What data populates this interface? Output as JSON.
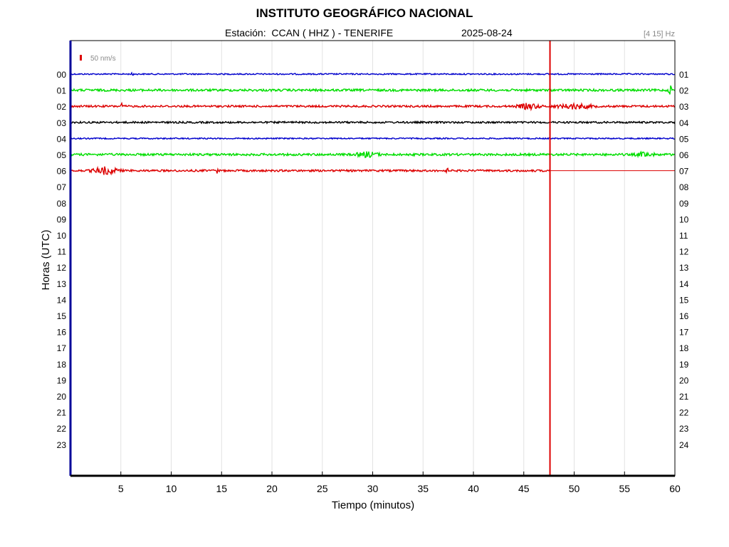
{
  "header": {
    "title": "INSTITUTO GEOGRÁFICO NACIONAL",
    "station": "Estación:  CCAN ( HHZ ) - TENERIFE",
    "date": "2025-08-24",
    "filter": "[4 15] Hz"
  },
  "scale_label": "50 nm/s",
  "chart_data": {
    "type": "line",
    "title": "INSTITUTO GEOGRÁFICO NACIONAL",
    "xlabel": "Tiempo (minutos)",
    "ylabel": "Horas (UTC)",
    "xlim": [
      0,
      60
    ],
    "x_ticks": [
      "5",
      "10",
      "15",
      "20",
      "25",
      "30",
      "35",
      "40",
      "45",
      "50",
      "55",
      "60"
    ],
    "left_hour_labels": [
      "00",
      "01",
      "02",
      "03",
      "04",
      "05",
      "06",
      "07",
      "08",
      "09",
      "10",
      "11",
      "12",
      "13",
      "14",
      "15",
      "16",
      "17",
      "18",
      "19",
      "20",
      "21",
      "22",
      "23"
    ],
    "right_hour_labels": [
      "01",
      "02",
      "03",
      "04",
      "05",
      "06",
      "07",
      "08",
      "09",
      "10",
      "11",
      "12",
      "13",
      "14",
      "15",
      "16",
      "17",
      "18",
      "19",
      "20",
      "21",
      "22",
      "23",
      "24"
    ],
    "grid": true,
    "current_time_minute": 47.6,
    "colors": {
      "blue": "#0000cc",
      "green": "#00dd00",
      "red": "#dd0000",
      "black": "#000000",
      "cursor": "#dd0000"
    },
    "traces": [
      {
        "hour": 0,
        "color": "#0000cc",
        "end_minute": 60,
        "noise": 0.9,
        "events": [
          {
            "minute": 6.2,
            "amp": 5,
            "width": 0.15
          }
        ]
      },
      {
        "hour": 1,
        "color": "#00dd00",
        "end_minute": 60,
        "noise": 1.6,
        "events": [
          {
            "minute": 59.6,
            "amp": 7,
            "width": 0.3
          }
        ]
      },
      {
        "hour": 2,
        "color": "#dd0000",
        "end_minute": 60,
        "noise": 1.4,
        "events": [
          {
            "minute": 5.1,
            "amp": 4,
            "width": 0.15
          },
          {
            "minute": 45.5,
            "amp": 4,
            "width": 1.5
          },
          {
            "minute": 50,
            "amp": 3.5,
            "width": 2.5
          }
        ]
      },
      {
        "hour": 3,
        "color": "#000000",
        "end_minute": 60,
        "noise": 1.3,
        "events": []
      },
      {
        "hour": 4,
        "color": "#0000cc",
        "end_minute": 60,
        "noise": 0.9,
        "events": []
      },
      {
        "hour": 5,
        "color": "#00dd00",
        "end_minute": 60,
        "noise": 1.6,
        "events": [
          {
            "minute": 29.5,
            "amp": 3.5,
            "width": 1.5
          },
          {
            "minute": 57,
            "amp": 3,
            "width": 1.2
          }
        ]
      },
      {
        "hour": 6,
        "color": "#dd0000",
        "end_minute": 47.6,
        "noise": 1.4,
        "events": [
          {
            "minute": 3.5,
            "amp": 5,
            "width": 1.8
          },
          {
            "minute": 14.6,
            "amp": 4.5,
            "width": 0.15
          },
          {
            "minute": 37.4,
            "amp": 3.5,
            "width": 0.15
          }
        ]
      }
    ]
  }
}
